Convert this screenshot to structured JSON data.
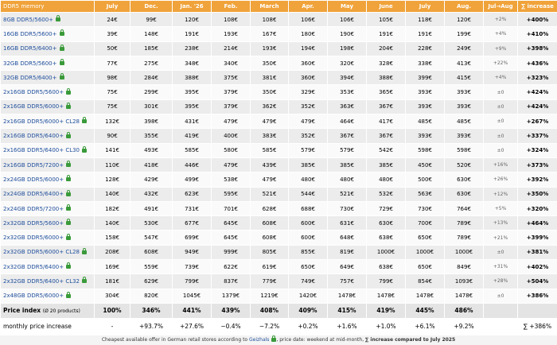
{
  "header": [
    "DDR5 memory",
    "July",
    "Dec.",
    "Jan. '26",
    "Feb.",
    "March",
    "Apr.",
    "May",
    "June",
    "July",
    "Aug.",
    "Jul→Aug",
    "∑ increase"
  ],
  "rows": [
    {
      "name": "8GB DDR5/5600+",
      "cells": [
        "24€",
        "99€",
        "120€",
        "108€",
        "108€",
        "106€",
        "106€",
        "105€",
        "118€",
        "120€",
        "+2%",
        "+400%"
      ]
    },
    {
      "name": "16GB DDR5/5600+",
      "cells": [
        "39€",
        "148€",
        "191€",
        "193€",
        "167€",
        "180€",
        "190€",
        "191€",
        "191€",
        "199€",
        "+4%",
        "+410%"
      ]
    },
    {
      "name": "16GB DDR5/6400+",
      "cells": [
        "50€",
        "185€",
        "238€",
        "214€",
        "193€",
        "194€",
        "198€",
        "204€",
        "228€",
        "249€",
        "+9%",
        "+398%"
      ]
    },
    {
      "name": "32GB DDR5/5600+",
      "cells": [
        "77€",
        "275€",
        "348€",
        "340€",
        "350€",
        "360€",
        "320€",
        "328€",
        "338€",
        "413€",
        "+22%",
        "+436%"
      ]
    },
    {
      "name": "32GB DDR5/6400+",
      "cells": [
        "98€",
        "284€",
        "388€",
        "375€",
        "381€",
        "360€",
        "394€",
        "388€",
        "399€",
        "415€",
        "+4%",
        "+323%"
      ]
    },
    {
      "name": "2x16GB DDR5/5600+",
      "cells": [
        "75€",
        "299€",
        "395€",
        "379€",
        "350€",
        "329€",
        "353€",
        "365€",
        "393€",
        "393€",
        "±0",
        "+424%"
      ]
    },
    {
      "name": "2x16GB DDR5/6000+",
      "cells": [
        "75€",
        "301€",
        "395€",
        "379€",
        "362€",
        "352€",
        "363€",
        "367€",
        "393€",
        "393€",
        "±0",
        "+424%"
      ]
    },
    {
      "name": "2x16GB DDR5/6000+ CL28",
      "cells": [
        "132€",
        "398€",
        "431€",
        "479€",
        "479€",
        "479€",
        "464€",
        "417€",
        "485€",
        "485€",
        "±0",
        "+267%"
      ]
    },
    {
      "name": "2x16GB DDR5/6400+",
      "cells": [
        "90€",
        "355€",
        "419€",
        "400€",
        "383€",
        "352€",
        "367€",
        "367€",
        "393€",
        "393€",
        "±0",
        "+337%"
      ]
    },
    {
      "name": "2x16GB DDR5/6400+ CL30",
      "cells": [
        "141€",
        "493€",
        "585€",
        "580€",
        "585€",
        "579€",
        "579€",
        "542€",
        "598€",
        "598€",
        "±0",
        "+324%"
      ]
    },
    {
      "name": "2x16GB DDR5/7200+",
      "cells": [
        "110€",
        "418€",
        "446€",
        "479€",
        "439€",
        "385€",
        "385€",
        "385€",
        "450€",
        "520€",
        "+16%",
        "+373%"
      ]
    },
    {
      "name": "2x24GB DDR5/6000+",
      "cells": [
        "128€",
        "429€",
        "499€",
        "538€",
        "479€",
        "480€",
        "480€",
        "480€",
        "500€",
        "630€",
        "+26%",
        "+392%"
      ]
    },
    {
      "name": "2x24GB DDR5/6400+",
      "cells": [
        "140€",
        "432€",
        "623€",
        "595€",
        "521€",
        "544€",
        "521€",
        "532€",
        "563€",
        "630€",
        "+12%",
        "+350%"
      ]
    },
    {
      "name": "2x24GB DDR5/7200+",
      "cells": [
        "182€",
        "491€",
        "731€",
        "701€",
        "628€",
        "688€",
        "730€",
        "729€",
        "730€",
        "764€",
        "+5%",
        "+320%"
      ]
    },
    {
      "name": "2x32GB DDR5/5600+",
      "cells": [
        "140€",
        "530€",
        "677€",
        "645€",
        "608€",
        "600€",
        "631€",
        "630€",
        "700€",
        "789€",
        "+13%",
        "+464%"
      ]
    },
    {
      "name": "2x32GB DDR5/6000+",
      "cells": [
        "158€",
        "547€",
        "699€",
        "645€",
        "608€",
        "600€",
        "648€",
        "638€",
        "650€",
        "789€",
        "+21%",
        "+399%"
      ]
    },
    {
      "name": "2x32GB DDR5/6000+ CL28",
      "cells": [
        "208€",
        "608€",
        "949€",
        "999€",
        "805€",
        "855€",
        "819€",
        "1000€",
        "1000€",
        "1000€",
        "±0",
        "+381%"
      ]
    },
    {
      "name": "2x32GB DDR5/6400+",
      "cells": [
        "169€",
        "559€",
        "739€",
        "622€",
        "619€",
        "650€",
        "649€",
        "638€",
        "650€",
        "849€",
        "+31%",
        "+402%"
      ]
    },
    {
      "name": "2x32GB DDR5/6400+ CL32",
      "cells": [
        "181€",
        "629€",
        "799€",
        "837€",
        "779€",
        "749€",
        "757€",
        "799€",
        "854€",
        "1093€",
        "+28%",
        "+504%"
      ]
    },
    {
      "name": "2x48GB DDR5/6000+",
      "cells": [
        "304€",
        "820€",
        "1045€",
        "1379€",
        "1219€",
        "1420€",
        "1478€",
        "1478€",
        "1478€",
        "1478€",
        "±0",
        "+386%"
      ]
    }
  ],
  "index_row": {
    "name": "Price index",
    "note": "(Ø 20 products)",
    "cells": [
      "100%",
      "346%",
      "441%",
      "439%",
      "408%",
      "409%",
      "415%",
      "419%",
      "445%",
      "486%"
    ]
  },
  "monthly_row": {
    "name": "monthly price increase",
    "cells": [
      "-",
      "+93.7%",
      "+27.6%",
      "−0.4%",
      "−7.2%",
      "+0.2%",
      "+1.6%",
      "+1.0%",
      "+6.1%",
      "+9.2%",
      "",
      "∑ +386%"
    ]
  },
  "footer": {
    "text1": "Cheapest available offer in German retail stores according to ",
    "brand": "Geizhals",
    "text2": ", price date: weekend at mid-month, ",
    "bold": "∑ increase compared to July 2025"
  }
}
